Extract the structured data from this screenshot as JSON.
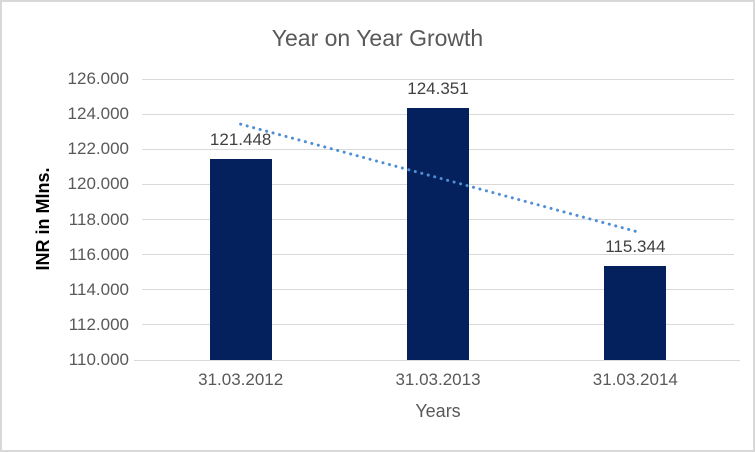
{
  "chart_data": {
    "type": "bar",
    "title": "Year on Year Growth",
    "xlabel": "Years",
    "ylabel": "INR in Mlns.",
    "categories": [
      "31.03.2012",
      "31.03.2013",
      "31.03.2014"
    ],
    "values": [
      121.448,
      124.351,
      115.344
    ],
    "data_labels": [
      "121.448",
      "124.351",
      "115.344"
    ],
    "ylim": [
      110,
      126
    ],
    "ytick_step": 2,
    "yticks": [
      {
        "value": 110,
        "label": "110.000"
      },
      {
        "value": 112,
        "label": "112.000"
      },
      {
        "value": 114,
        "label": "114.000"
      },
      {
        "value": 116,
        "label": "116.000"
      },
      {
        "value": 118,
        "label": "118.000"
      },
      {
        "value": 120,
        "label": "120.000"
      },
      {
        "value": 122,
        "label": "122.000"
      },
      {
        "value": 124,
        "label": "124.000"
      },
      {
        "value": 126,
        "label": "126.000"
      }
    ],
    "grid": true,
    "legend": false,
    "trendline": {
      "type": "linear",
      "style": "round-dot",
      "start_value": 123.43,
      "end_value": 117.33
    },
    "colors": {
      "bar": "#05215d",
      "trendline": "#4e8ed3",
      "gridline": "#d9d9d9",
      "title_text": "#595959",
      "tick_text": "#595959",
      "data_label_text": "#404040",
      "y_axis_title_text": "#000000",
      "x_axis_title_text": "#595959",
      "border": "#d8d8d8",
      "background": "#ffffff"
    }
  }
}
